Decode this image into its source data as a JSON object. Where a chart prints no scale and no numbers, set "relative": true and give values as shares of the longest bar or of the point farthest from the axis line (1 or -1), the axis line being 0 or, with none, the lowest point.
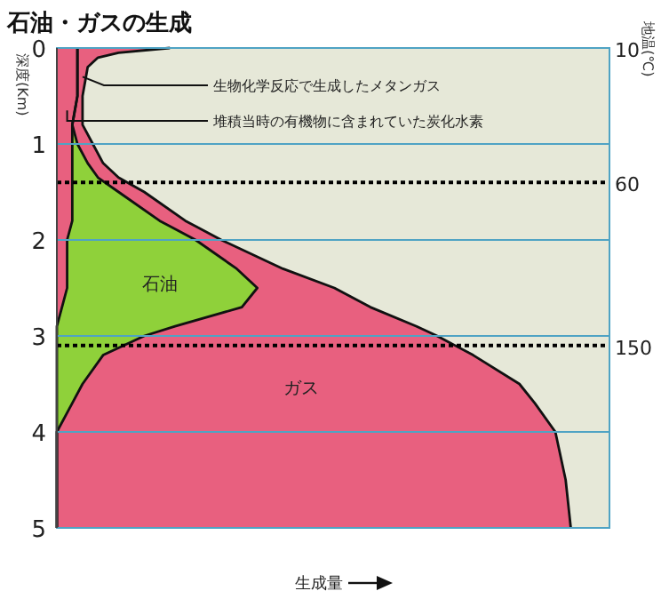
{
  "chart_data": {
    "type": "area",
    "title": "石油・ガスの生成",
    "xlabel": "生成量",
    "ylabel": "深度(Km)",
    "y2label": "地温(℃)",
    "orientation": "horizontal",
    "stacked": true,
    "relative": true,
    "grid": "y",
    "x": [
      0,
      0.05,
      0.1,
      0.2,
      0.5,
      0.8,
      1.0,
      1.2,
      1.35,
      1.5,
      1.8,
      2.0,
      2.3,
      2.5,
      2.7,
      2.9,
      3.0,
      3.2,
      3.5,
      3.7,
      4.0,
      4.5,
      5.0
    ],
    "ylim": [
      5,
      0
    ],
    "yticks": [
      0,
      1,
      2,
      3,
      4,
      5
    ],
    "ref_lines": [
      {
        "axis": "y",
        "value": 1.4,
        "color": "#000000",
        "line_style": "dotted"
      },
      {
        "axis": "y",
        "value": 3.1,
        "color": "#000000",
        "line_style": "dotted"
      }
    ],
    "series": [
      {
        "color": "#e8607f",
        "values": [
          0.04,
          0.04,
          0.04,
          0.04,
          0.04,
          0.03,
          0.03,
          0.03,
          0.03,
          0.03,
          0.03,
          0.02,
          0.02,
          0.02,
          0.01,
          0.0,
          0,
          0,
          0,
          0,
          0,
          0,
          0
        ]
      },
      {
        "name": "石油",
        "color": "#8fd13a",
        "values": [
          0,
          0,
          0,
          0,
          0,
          0,
          0.01,
          0.03,
          0.05,
          0.09,
          0.17,
          0.25,
          0.33,
          0.37,
          0.35,
          0.23,
          0.17,
          0.09,
          0.05,
          0.03,
          0,
          0,
          0
        ]
      },
      {
        "name": "ガス",
        "color": "#e8607f",
        "values": [
          0.18,
          0.08,
          0.04,
          0.02,
          0.01,
          0.02,
          0.03,
          0.03,
          0.04,
          0.05,
          0.05,
          0.05,
          0.09,
          0.15,
          0.25,
          0.47,
          0.57,
          0.72,
          0.85,
          0.9,
          0.97,
          0.99,
          1
        ]
      }
    ],
    "annotations": [
      "10",
      "60",
      "150",
      {
        "text": "生物化学反応で生成したメタンガス",
        "x": 0.05,
        "y": 0.3
      },
      {
        "text": "堆積当時の有機物に含まれていた炭化水素",
        "x": 0.02,
        "y": 0.65
      }
    ]
  }
}
